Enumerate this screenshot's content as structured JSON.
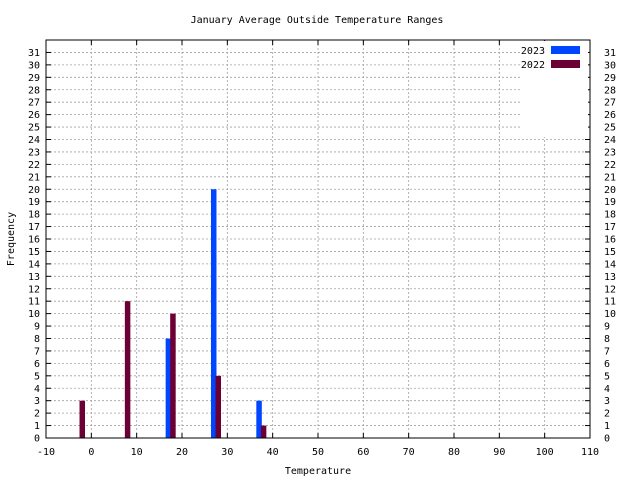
{
  "chart_data": {
    "type": "bar",
    "title": "January Average Outside Temperature Ranges",
    "xlabel": "Temperature",
    "ylabel": "Frequency",
    "xlim": [
      -10,
      110
    ],
    "ylim": [
      0,
      32
    ],
    "x_ticks": [
      "-10",
      "0",
      "10",
      "20",
      "30",
      "40",
      "50",
      "60",
      "70",
      "80",
      "90",
      "100",
      "110"
    ],
    "y_ticks": [
      "0",
      "1",
      "2",
      "3",
      "4",
      "5",
      "6",
      "7",
      "8",
      "9",
      "10",
      "11",
      "12",
      "13",
      "14",
      "15",
      "16",
      "17",
      "18",
      "19",
      "20",
      "21",
      "22",
      "23",
      "24",
      "25",
      "26",
      "27",
      "28",
      "29",
      "30",
      "31"
    ],
    "grid": true,
    "legend_position": "top-right",
    "series": [
      {
        "name": "2023",
        "color": "#0046ff",
        "x": [
          17,
          27,
          37
        ],
        "values": [
          8,
          20,
          3
        ]
      },
      {
        "name": "2022",
        "color": "#6a0033",
        "x": [
          -2,
          8,
          18,
          28,
          38
        ],
        "values": [
          3,
          11,
          10,
          5,
          1
        ]
      }
    ]
  }
}
